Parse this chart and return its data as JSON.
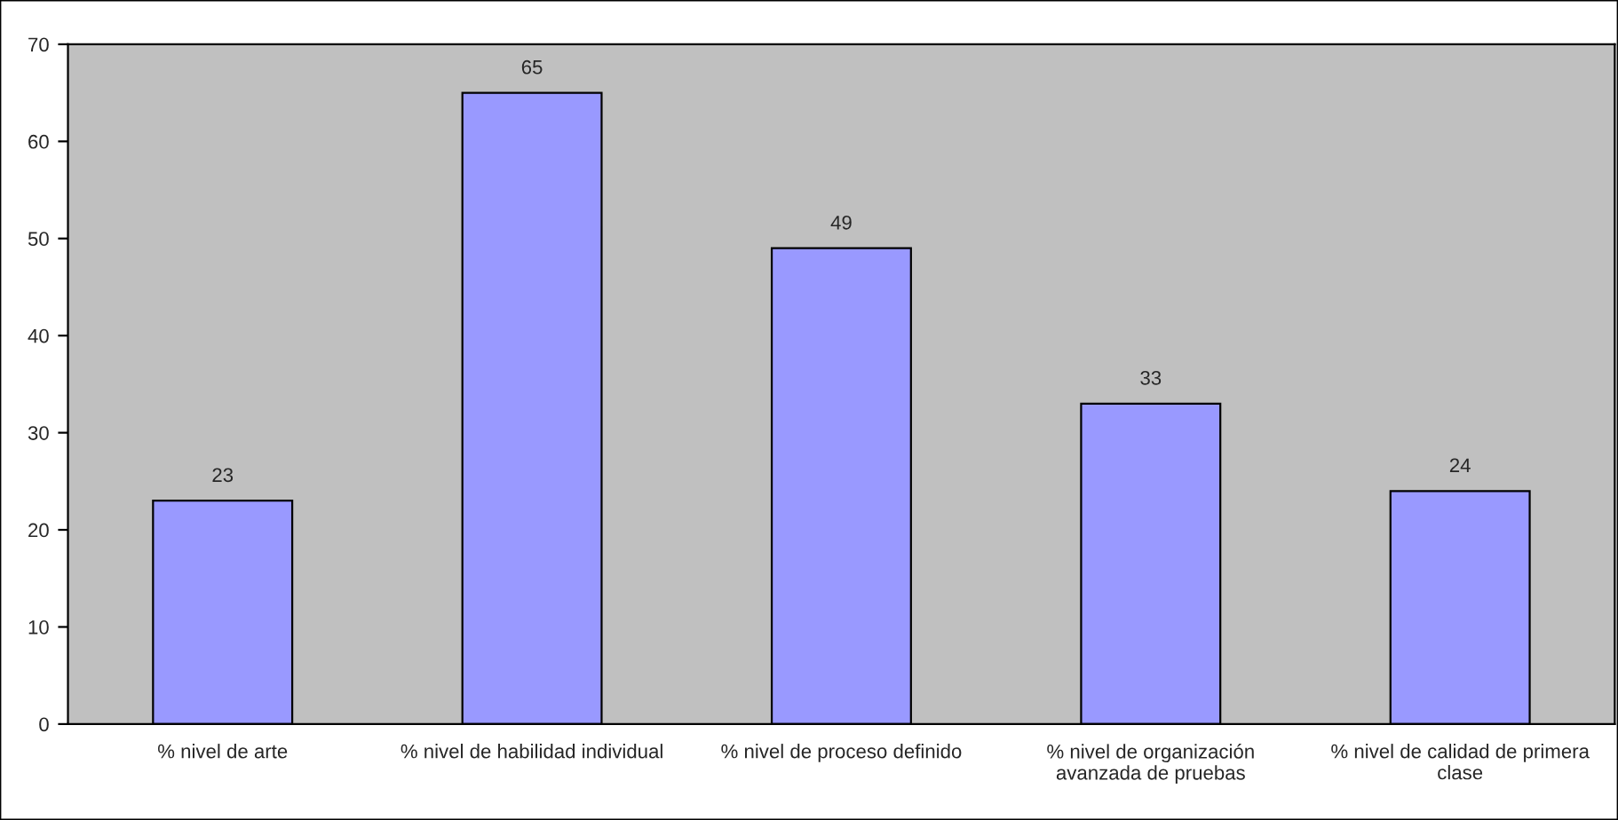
{
  "chart_data": {
    "type": "bar",
    "categories": [
      "% nivel de arte",
      "% nivel de habilidad individual",
      "% nivel de proceso definido",
      "% nivel de organización\navanzada de pruebas",
      "% nivel de calidad de primera\nclase"
    ],
    "values": [
      23,
      65,
      49,
      33,
      24
    ],
    "color": "#9999ff",
    "ylim": [
      0,
      70
    ],
    "yticks": [
      0,
      10,
      20,
      30,
      40,
      50,
      60,
      70
    ],
    "data_labels": true,
    "grid": false,
    "legend": false
  }
}
